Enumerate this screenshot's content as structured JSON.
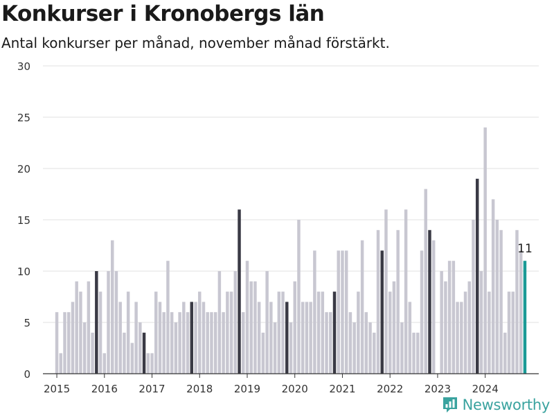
{
  "title": "Konkurser i Kronobergs län",
  "subtitle": "Antal konkurser per månad, november månad förstärkt.",
  "brand": {
    "name": "Newsworthy",
    "icon": "newsworthy-logo-icon"
  },
  "colors": {
    "regular": "#c8c7d1",
    "highlight": "#3a3a45",
    "latest": "#1a9a96",
    "grid": "#e2e2e2"
  },
  "chart_data": {
    "type": "bar",
    "start": "2015-01",
    "highlight_month": "11",
    "xlim": [
      "2014-10",
      "2025-03"
    ],
    "ylim": [
      0,
      30
    ],
    "yticks": [
      0,
      5,
      10,
      15,
      20,
      25,
      30
    ],
    "xticks": [
      "2015",
      "2016",
      "2017",
      "2018",
      "2019",
      "2020",
      "2021",
      "2022",
      "2023",
      "2024"
    ],
    "values": [
      6,
      2,
      6,
      6,
      7,
      9,
      8,
      5,
      9,
      4,
      10,
      8,
      2,
      10,
      13,
      10,
      7,
      4,
      8,
      3,
      7,
      5,
      4,
      2,
      2,
      8,
      7,
      6,
      11,
      6,
      5,
      6,
      7,
      6,
      7,
      7,
      8,
      7,
      6,
      6,
      6,
      10,
      6,
      8,
      8,
      10,
      16,
      6,
      11,
      9,
      9,
      7,
      4,
      10,
      7,
      5,
      8,
      8,
      7,
      5,
      9,
      15,
      7,
      7,
      7,
      12,
      8,
      8,
      6,
      6,
      8,
      12,
      12,
      12,
      6,
      5,
      8,
      13,
      6,
      5,
      4,
      14,
      12,
      16,
      8,
      9,
      14,
      5,
      16,
      7,
      4,
      4,
      12,
      18,
      14,
      13,
      0,
      10,
      9,
      11,
      11,
      7,
      7,
      8,
      9,
      15,
      19,
      10,
      24,
      8,
      17,
      15,
      14,
      4,
      8,
      8,
      14,
      12,
      11
    ],
    "last_label": "11"
  }
}
